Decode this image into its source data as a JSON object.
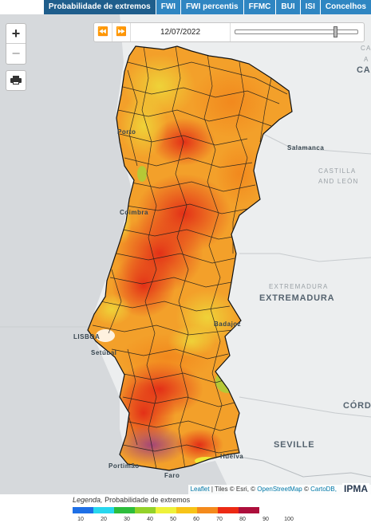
{
  "tabs": [
    {
      "label": "Probabilidade de extremos",
      "active": true
    },
    {
      "label": "FWI",
      "active": false
    },
    {
      "label": "FWI percentis",
      "active": false
    },
    {
      "label": "FFMC",
      "active": false
    },
    {
      "label": "BUI",
      "active": false
    },
    {
      "label": "ISI",
      "active": false
    },
    {
      "label": "Concelhos",
      "active": false
    }
  ],
  "map_controls": {
    "zoom_in": "+",
    "zoom_out": "−",
    "print_icon": "printer-icon"
  },
  "timeline": {
    "prev_symbol": "⏪",
    "next_symbol": "⏩",
    "date": "12/07/2022",
    "slider_position": 0.82
  },
  "map_labels": {
    "porto": "Porto",
    "coimbra": "Coimbra",
    "lisboa": "LISBOA",
    "setubal": "Setúbal",
    "badajoz": "Badajoz",
    "salamanca": "Salamanca",
    "castilla": "CASTILLA",
    "and_leon": "AND LEÓN",
    "extremadura_region": "EXTREMADURA",
    "extremadura": "EXTREMADURA",
    "sevilla": "SEVILLE",
    "huelva": "Huelva",
    "faro": "Faro",
    "portimao": "Portimão",
    "cordoba": "CÓRDO",
    "ca": "CA",
    "ca_edge": "CA",
    "ca_edge2": "A"
  },
  "attribution": {
    "leaflet": "Leaflet",
    "tiles": " | Tiles © Esri, © ",
    "osm": "OpenStreetMap",
    "sep": " © ",
    "carto": "CartoDB,",
    "logo": "IPMA"
  },
  "legend": {
    "prefix": "Legenda,",
    "title": "Probabilidade de extremos",
    "colors": [
      "#1e6fe6",
      "#28d7ee",
      "#2dbd3c",
      "#93d22a",
      "#eef23a",
      "#f7c418",
      "#f48a1c",
      "#ec2a14",
      "#ad0f3c"
    ],
    "ticks": [
      "10",
      "20",
      "30",
      "40",
      "50",
      "60",
      "70",
      "80",
      "90",
      "100"
    ]
  }
}
